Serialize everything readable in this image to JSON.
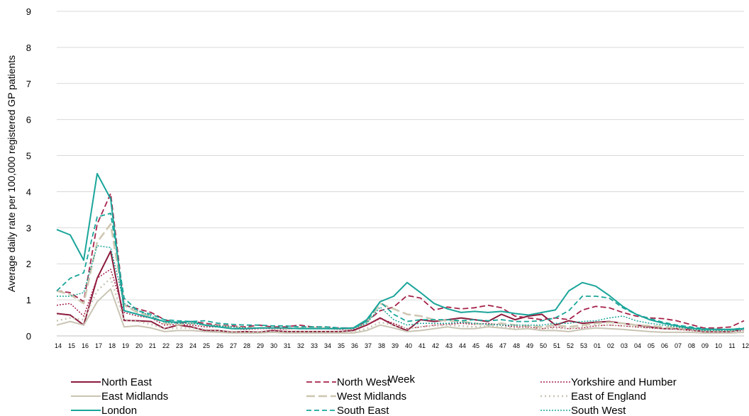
{
  "chart_data": {
    "type": "line",
    "title": "",
    "xlabel": "Week",
    "ylabel": "Average daily rate per 100,000 registered GP patients",
    "ylim": [
      0,
      9
    ],
    "yticks": [
      "0",
      "1",
      "2",
      "3",
      "4",
      "5",
      "6",
      "7",
      "8",
      "9"
    ],
    "grid": "horizontal",
    "legend_position": "bottom",
    "categories": [
      "14",
      "15",
      "16",
      "17",
      "18",
      "19",
      "20",
      "21",
      "22",
      "23",
      "24",
      "25",
      "26",
      "27",
      "28",
      "29",
      "30",
      "31",
      "32",
      "33",
      "34",
      "35",
      "36",
      "37",
      "38",
      "39",
      "40",
      "41",
      "42",
      "43",
      "44",
      "45",
      "46",
      "47",
      "48",
      "49",
      "50",
      "51",
      "52",
      "53",
      "01",
      "02",
      "03",
      "04",
      "05",
      "06",
      "07",
      "08",
      "09",
      "10",
      "11",
      "12"
    ],
    "series": [
      {
        "name": "North East",
        "color": "#8b1a3c",
        "dash": "solid",
        "width": 2,
        "values": [
          0.62,
          0.58,
          0.3,
          1.6,
          2.35,
          0.43,
          0.42,
          0.4,
          0.2,
          0.3,
          0.25,
          0.15,
          0.15,
          0.1,
          0.12,
          0.1,
          0.15,
          0.12,
          0.12,
          0.12,
          0.12,
          0.12,
          0.15,
          0.3,
          0.5,
          0.3,
          0.15,
          0.45,
          0.4,
          0.45,
          0.5,
          0.45,
          0.4,
          0.6,
          0.45,
          0.55,
          0.6,
          0.3,
          0.42,
          0.35,
          0.38,
          0.4,
          0.35,
          0.3,
          0.25,
          0.2,
          0.2,
          0.18,
          0.12,
          0.1,
          0.12,
          0.2
        ]
      },
      {
        "name": "North West",
        "color": "#a6234a",
        "dash": "8,4",
        "width": 1.8,
        "values": [
          1.25,
          1.2,
          0.95,
          3.1,
          3.95,
          0.85,
          0.75,
          0.65,
          0.45,
          0.35,
          0.4,
          0.35,
          0.3,
          0.28,
          0.25,
          0.3,
          0.25,
          0.25,
          0.3,
          0.25,
          0.25,
          0.22,
          0.22,
          0.4,
          0.7,
          0.8,
          1.12,
          1.05,
          0.72,
          0.8,
          0.75,
          0.78,
          0.85,
          0.78,
          0.55,
          0.5,
          0.45,
          0.5,
          0.45,
          0.72,
          0.82,
          0.78,
          0.65,
          0.55,
          0.5,
          0.48,
          0.42,
          0.32,
          0.22,
          0.22,
          0.25,
          0.42
        ]
      },
      {
        "name": "Yorkshire and Humber",
        "color": "#a6234a",
        "dash": "2,2",
        "width": 1.5,
        "values": [
          0.85,
          0.9,
          0.55,
          1.6,
          1.85,
          0.65,
          0.55,
          0.5,
          0.3,
          0.32,
          0.3,
          0.25,
          0.25,
          0.2,
          0.18,
          0.2,
          0.2,
          0.18,
          0.22,
          0.2,
          0.2,
          0.18,
          0.18,
          0.3,
          0.48,
          0.35,
          0.2,
          0.25,
          0.3,
          0.32,
          0.35,
          0.32,
          0.35,
          0.3,
          0.25,
          0.25,
          0.2,
          0.25,
          0.2,
          0.22,
          0.28,
          0.3,
          0.28,
          0.25,
          0.22,
          0.2,
          0.18,
          0.15,
          0.12,
          0.12,
          0.12,
          0.15
        ]
      },
      {
        "name": "East Midlands",
        "color": "#c9c4b3",
        "dash": "solid",
        "width": 2,
        "values": [
          0.3,
          0.4,
          0.3,
          0.95,
          1.3,
          0.25,
          0.28,
          0.22,
          0.12,
          0.15,
          0.15,
          0.12,
          0.1,
          0.08,
          0.08,
          0.08,
          0.1,
          0.08,
          0.08,
          0.08,
          0.08,
          0.08,
          0.08,
          0.15,
          0.3,
          0.22,
          0.12,
          0.15,
          0.2,
          0.25,
          0.2,
          0.2,
          0.25,
          0.22,
          0.18,
          0.2,
          0.15,
          0.15,
          0.12,
          0.18,
          0.22,
          0.2,
          0.18,
          0.15,
          0.12,
          0.1,
          0.1,
          0.1,
          0.08,
          0.08,
          0.08,
          0.1
        ]
      },
      {
        "name": "West Midlands",
        "color": "#cdc6b0",
        "dash": "12,5",
        "width": 2.5,
        "values": [
          1.25,
          1.15,
          0.9,
          2.6,
          3.1,
          0.85,
          0.65,
          0.55,
          0.35,
          0.3,
          0.35,
          0.3,
          0.28,
          0.25,
          0.22,
          0.22,
          0.22,
          0.2,
          0.22,
          0.22,
          0.22,
          0.2,
          0.2,
          0.35,
          0.9,
          0.75,
          0.6,
          0.55,
          0.45,
          0.42,
          0.4,
          0.35,
          0.3,
          0.35,
          0.3,
          0.28,
          0.25,
          0.3,
          0.25,
          0.3,
          0.35,
          0.38,
          0.35,
          0.3,
          0.28,
          0.25,
          0.22,
          0.2,
          0.15,
          0.15,
          0.15,
          0.2
        ]
      },
      {
        "name": "East of England",
        "color": "#c9c4b3",
        "dash": "2,4",
        "width": 2.5,
        "values": [
          0.42,
          0.5,
          0.45,
          1.25,
          1.6,
          0.45,
          0.4,
          0.32,
          0.2,
          0.22,
          0.22,
          0.18,
          0.15,
          0.12,
          0.12,
          0.12,
          0.12,
          0.12,
          0.12,
          0.12,
          0.12,
          0.12,
          0.12,
          0.2,
          0.38,
          0.3,
          0.2,
          0.25,
          0.28,
          0.3,
          0.28,
          0.25,
          0.28,
          0.25,
          0.22,
          0.22,
          0.2,
          0.22,
          0.2,
          0.25,
          0.3,
          0.3,
          0.28,
          0.25,
          0.22,
          0.2,
          0.18,
          0.15,
          0.12,
          0.12,
          0.12,
          0.15
        ]
      },
      {
        "name": "London",
        "color": "#1aa59a",
        "dash": "solid",
        "width": 2,
        "values": [
          2.95,
          2.8,
          2.1,
          4.5,
          3.8,
          0.7,
          0.6,
          0.5,
          0.4,
          0.38,
          0.4,
          0.3,
          0.25,
          0.2,
          0.2,
          0.22,
          0.22,
          0.22,
          0.2,
          0.2,
          0.2,
          0.2,
          0.22,
          0.45,
          0.95,
          1.1,
          1.48,
          1.2,
          0.9,
          0.75,
          0.65,
          0.68,
          0.65,
          0.68,
          0.62,
          0.58,
          0.65,
          0.72,
          1.25,
          1.48,
          1.38,
          1.12,
          0.82,
          0.6,
          0.45,
          0.35,
          0.28,
          0.22,
          0.18,
          0.18,
          0.18,
          0.2
        ]
      },
      {
        "name": "South East",
        "color": "#1aa59a",
        "dash": "7,4",
        "width": 1.8,
        "values": [
          1.25,
          1.6,
          1.75,
          3.3,
          3.4,
          1.05,
          0.7,
          0.6,
          0.45,
          0.42,
          0.4,
          0.42,
          0.35,
          0.32,
          0.3,
          0.3,
          0.28,
          0.28,
          0.25,
          0.25,
          0.25,
          0.22,
          0.22,
          0.4,
          0.95,
          0.6,
          0.4,
          0.45,
          0.45,
          0.45,
          0.42,
          0.45,
          0.42,
          0.45,
          0.4,
          0.4,
          0.42,
          0.5,
          0.7,
          1.1,
          1.1,
          1.05,
          0.78,
          0.6,
          0.48,
          0.38,
          0.3,
          0.25,
          0.2,
          0.18,
          0.18,
          0.22
        ]
      },
      {
        "name": "South West",
        "color": "#1aa59a",
        "dash": "2,2",
        "width": 1.5,
        "values": [
          1.1,
          1.1,
          1.2,
          2.5,
          2.45,
          0.9,
          0.7,
          0.55,
          0.38,
          0.35,
          0.35,
          0.3,
          0.28,
          0.25,
          0.22,
          0.22,
          0.22,
          0.22,
          0.2,
          0.2,
          0.2,
          0.2,
          0.2,
          0.35,
          0.8,
          0.45,
          0.3,
          0.35,
          0.35,
          0.35,
          0.38,
          0.35,
          0.32,
          0.3,
          0.3,
          0.3,
          0.3,
          0.35,
          0.35,
          0.4,
          0.42,
          0.5,
          0.55,
          0.42,
          0.35,
          0.3,
          0.25,
          0.2,
          0.15,
          0.15,
          0.15,
          0.18
        ]
      }
    ]
  }
}
